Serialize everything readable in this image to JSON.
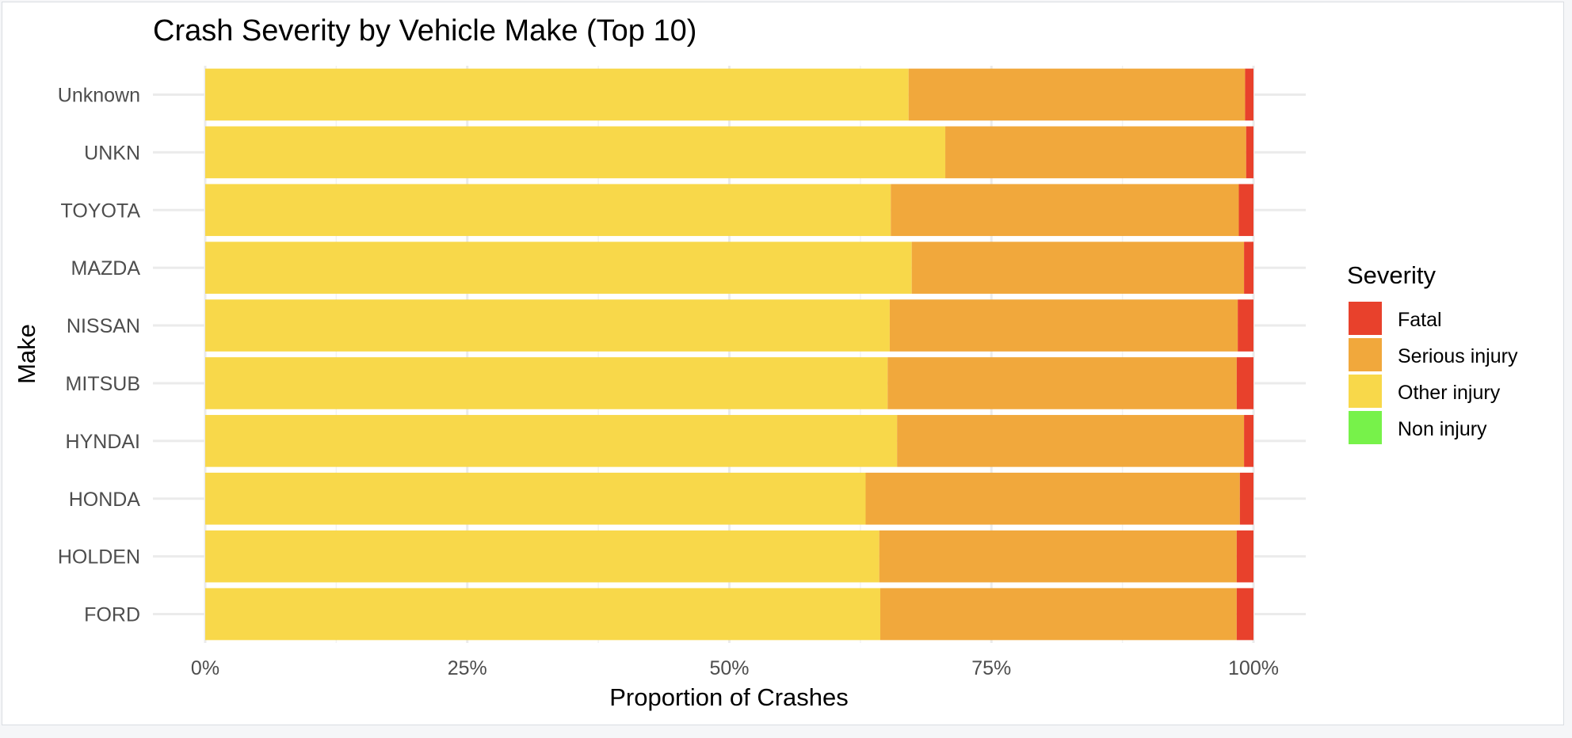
{
  "chart_data": {
    "type": "bar",
    "orientation": "horizontal",
    "stacked": "percent",
    "title": "Crash Severity by Vehicle Make (Top 10)",
    "xlabel": "Proportion of Crashes",
    "ylabel": "Make",
    "xlim": [
      0,
      1
    ],
    "x_ticks": [
      0,
      0.25,
      0.5,
      0.75,
      1.0
    ],
    "x_tick_labels": [
      "0%",
      "25%",
      "50%",
      "75%",
      "100%"
    ],
    "grid": true,
    "categories": [
      "Unknown",
      "UNKN",
      "TOYOTA",
      "MAZDA",
      "NISSAN",
      "MITSUB",
      "HYNDAI",
      "HONDA",
      "HOLDEN",
      "FORD"
    ],
    "series": [
      {
        "name": "Non injury",
        "color": "#77f24a",
        "values": [
          0,
          0,
          0,
          0,
          0,
          0,
          0,
          0,
          0,
          0
        ]
      },
      {
        "name": "Other injury",
        "color": "#f8d84a",
        "values": [
          0.671,
          0.706,
          0.654,
          0.674,
          0.653,
          0.651,
          0.66,
          0.63,
          0.643,
          0.644
        ]
      },
      {
        "name": "Serious injury",
        "color": "#f1a83c",
        "values": [
          0.321,
          0.287,
          0.332,
          0.317,
          0.332,
          0.333,
          0.331,
          0.357,
          0.341,
          0.34
        ]
      },
      {
        "name": "Fatal",
        "color": "#e8412c",
        "values": [
          0.008,
          0.007,
          0.014,
          0.009,
          0.015,
          0.016,
          0.009,
          0.013,
          0.016,
          0.016
        ]
      }
    ],
    "legend": {
      "title": "Severity",
      "position": "right",
      "entries": [
        "Fatal",
        "Serious injury",
        "Other injury",
        "Non injury"
      ]
    }
  }
}
